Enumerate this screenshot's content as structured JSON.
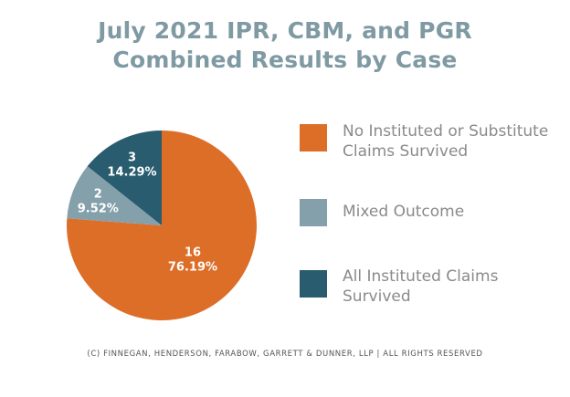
{
  "title": {
    "line1": "July 2021 IPR, CBM, and PGR",
    "line2": "Combined Results by Case"
  },
  "legend": {
    "items": [
      {
        "line1": "No Instituted or Substitute",
        "line2": "Claims Survived",
        "color": "#dc6e28"
      },
      {
        "line1": "Mixed Outcome",
        "line2": "",
        "color": "#84a0aa"
      },
      {
        "line1": "All Instituted Claims",
        "line2": "Survived",
        "color": "#285c6e"
      }
    ]
  },
  "footer": "(C) FINNEGAN, HENDERSON, FARABOW, GARRETT & DUNNER, LLP | ALL RIGHTS RESERVED",
  "chart_data": {
    "type": "pie",
    "title": "July 2021 IPR, CBM, and PGR Combined Results by Case",
    "slices": [
      {
        "name": "No Instituted or Substitute Claims Survived",
        "value": 16,
        "label": "16",
        "percent_label": "76.19%",
        "color": "#dc6e28"
      },
      {
        "name": "Mixed Outcome",
        "value": 2,
        "label": "2",
        "percent_label": "9.52%",
        "color": "#84a0aa"
      },
      {
        "name": "All Instituted Claims Survived",
        "value": 3,
        "label": "3",
        "percent_label": "14.29%",
        "color": "#285c6e"
      }
    ],
    "start": "12 o'clock",
    "direction": "clockwise",
    "legend_position": "right"
  }
}
